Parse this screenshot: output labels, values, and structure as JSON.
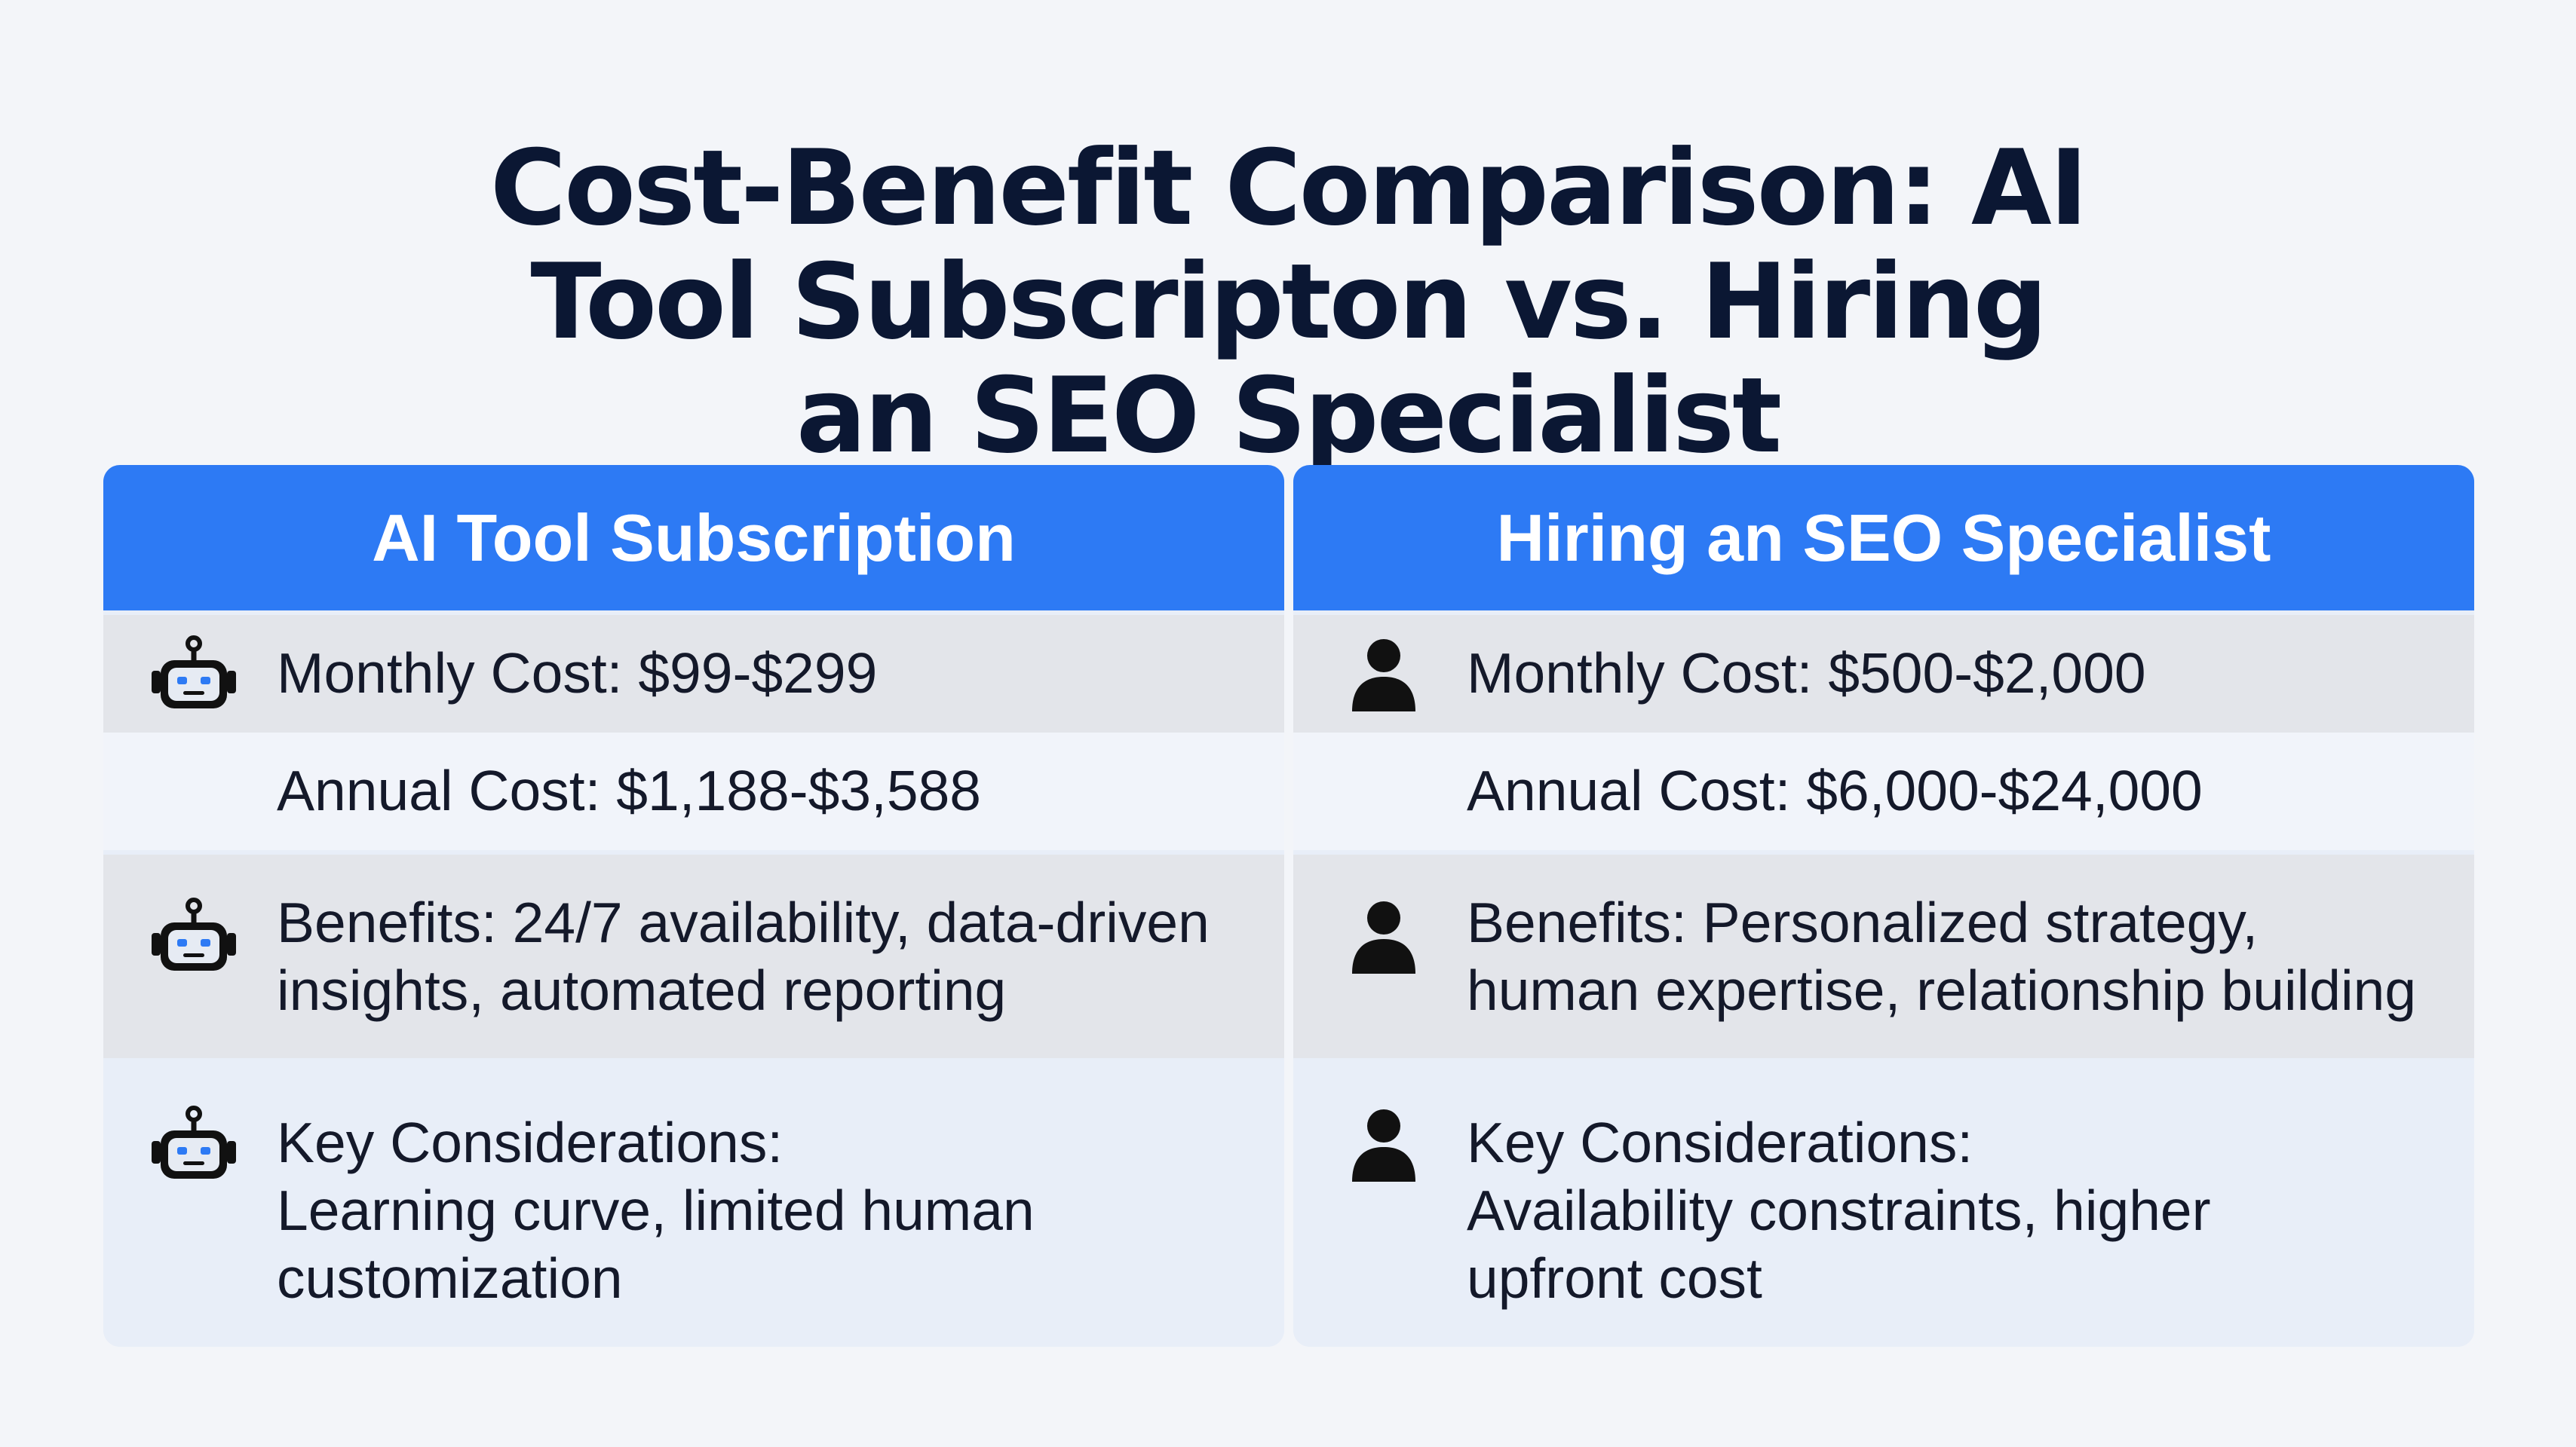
{
  "title_lines": [
    "Cost-Benefit Comparison: AI",
    "Tool Subscripton vs. Hiring",
    "an SEO Specialist"
  ],
  "colors": {
    "header_blue": "#2d7af4",
    "title_navy": "#0b1733",
    "row_gray": "#e3e5ea",
    "row_light": "#f1f4fa",
    "panel_blue_tint": "#e8eef8"
  },
  "columns": [
    {
      "header": "AI Tool Subscription",
      "icon": "robot-icon",
      "rows": [
        [
          "Monthly Cost: $99-$299"
        ],
        [
          "Annual Cost: $1,188-$3,588"
        ],
        [
          "Benefits: 24/7 availability, data-driven",
          "insights, automated reporting"
        ],
        [
          "Key Considerations:",
          "Learning curve, limited human",
          "customization"
        ]
      ]
    },
    {
      "header": "Hiring an SEO Specialist",
      "icon": "person-icon",
      "rows": [
        [
          "Monthly Cost: $500-$2,000"
        ],
        [
          "Annual Cost: $6,000-$24,000"
        ],
        [
          "Benefits: Personalized strategy,",
          "human expertise, relationship building"
        ],
        [
          "Key Considerations:",
          "Availability constraints, higher",
          "upfront cost"
        ]
      ]
    }
  ]
}
